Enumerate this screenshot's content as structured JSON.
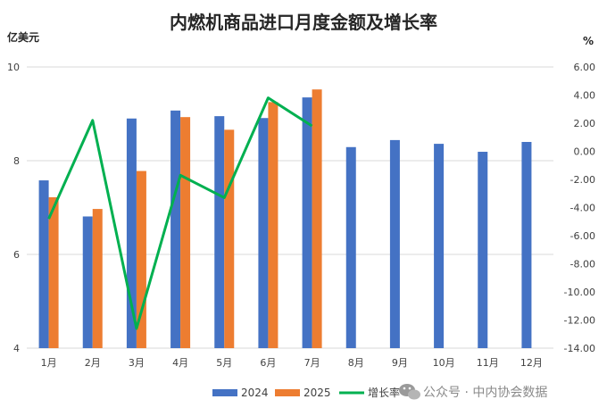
{
  "chart_data": {
    "type": "bar",
    "title": "内燃机商品进口月度金额及增长率",
    "y_left_unit": "亿美元",
    "y_right_unit": "%",
    "categories": [
      "1月",
      "2月",
      "3月",
      "4月",
      "5月",
      "6月",
      "7月",
      "8月",
      "9月",
      "10月",
      "11月",
      "12月"
    ],
    "ylim_left": [
      4,
      10
    ],
    "yticks_left": [
      "4",
      "6",
      "8",
      "10"
    ],
    "ylim_right": [
      -14,
      6
    ],
    "yticks_right": [
      "-14.00",
      "-12.00",
      "-10.00",
      "-8.00",
      "-6.00",
      "-4.00",
      "-2.00",
      "0.00",
      "2.00",
      "4.00",
      "6.00"
    ],
    "grid": true,
    "legend_position": "bottom",
    "series": [
      {
        "name": "2024",
        "type": "bar",
        "axis": "left",
        "color": "#4472C4",
        "values": [
          7.58,
          6.81,
          8.9,
          9.07,
          8.95,
          8.91,
          9.35,
          8.29,
          8.44,
          8.36,
          8.19,
          8.4
        ]
      },
      {
        "name": "2025",
        "type": "bar",
        "axis": "left",
        "color": "#ED7D31",
        "values": [
          7.22,
          6.97,
          7.78,
          8.93,
          8.66,
          9.25,
          9.52,
          null,
          null,
          null,
          null,
          null
        ]
      },
      {
        "name": "增长率",
        "type": "line",
        "axis": "right",
        "color": "#00B050",
        "values": [
          -4.8,
          2.2,
          -12.6,
          -1.7,
          -3.3,
          3.8,
          1.8,
          null,
          null,
          null,
          null,
          null
        ]
      }
    ]
  },
  "watermark": "公众号 · 中内协会数据"
}
